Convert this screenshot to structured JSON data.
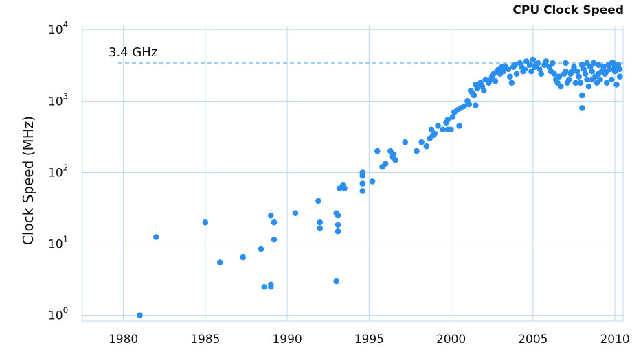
{
  "chart_data": {
    "type": "scatter",
    "title": "CPU Clock Speed",
    "ylabel": "Clock Speed (MHz)",
    "xlabel": "",
    "x_scale": "linear",
    "y_scale": "log",
    "xlim": [
      1977.5,
      2010.5
    ],
    "ylim_log10": [
      -0.08,
      4.05
    ],
    "x_ticks": [
      "1980",
      "1985",
      "1990",
      "1995",
      "2000",
      "2005",
      "2010"
    ],
    "y_ticks": [
      {
        "base": "10",
        "exp": "0"
      },
      {
        "base": "10",
        "exp": "1"
      },
      {
        "base": "10",
        "exp": "2"
      },
      {
        "base": "10",
        "exp": "3"
      },
      {
        "base": "10",
        "exp": "4"
      }
    ],
    "grid": true,
    "reference_line": {
      "label": "3.4 GHz",
      "value": 3400
    },
    "point_color": "#2b8ff0",
    "points": [
      [
        1981.0,
        1.0
      ],
      [
        1982.0,
        12.5
      ],
      [
        1985.0,
        20
      ],
      [
        1985.9,
        5.5
      ],
      [
        1987.3,
        6.5
      ],
      [
        1988.4,
        8.5
      ],
      [
        1988.6,
        2.5
      ],
      [
        1989.0,
        25
      ],
      [
        1989.0,
        2.5
      ],
      [
        1989.0,
        2.7
      ],
      [
        1989.2,
        20
      ],
      [
        1989.2,
        11.5
      ],
      [
        1990.5,
        27
      ],
      [
        1991.9,
        40
      ],
      [
        1992.0,
        20
      ],
      [
        1992.0,
        16.5
      ],
      [
        1993.0,
        27
      ],
      [
        1993.1,
        25
      ],
      [
        1993.1,
        18.5
      ],
      [
        1993.1,
        15
      ],
      [
        1993.0,
        3.0
      ],
      [
        1993.2,
        60
      ],
      [
        1993.4,
        66
      ],
      [
        1993.5,
        60
      ],
      [
        1994.6,
        100
      ],
      [
        1994.6,
        90
      ],
      [
        1994.6,
        70
      ],
      [
        1994.6,
        55
      ],
      [
        1995.2,
        75
      ],
      [
        1995.5,
        200
      ],
      [
        1995.8,
        120
      ],
      [
        1996.0,
        133
      ],
      [
        1996.3,
        200
      ],
      [
        1996.4,
        166
      ],
      [
        1996.5,
        180
      ],
      [
        1996.6,
        150
      ],
      [
        1997.2,
        266
      ],
      [
        1997.9,
        200
      ],
      [
        1998.2,
        266
      ],
      [
        1998.5,
        233
      ],
      [
        1998.7,
        300
      ],
      [
        1998.8,
        400
      ],
      [
        1998.9,
        333
      ],
      [
        1999.0,
        350
      ],
      [
        1999.2,
        450
      ],
      [
        1999.5,
        400
      ],
      [
        1999.7,
        500
      ],
      [
        1999.8,
        550
      ],
      [
        1999.8,
        400
      ],
      [
        2000.0,
        400
      ],
      [
        2000.1,
        600
      ],
      [
        2000.2,
        700
      ],
      [
        2000.4,
        750
      ],
      [
        2000.5,
        450
      ],
      [
        2000.6,
        800
      ],
      [
        2000.8,
        850
      ],
      [
        2001.0,
        1000
      ],
      [
        2001.1,
        900
      ],
      [
        2001.2,
        1400
      ],
      [
        2001.3,
        1300
      ],
      [
        2001.5,
        870
      ],
      [
        2001.5,
        1700
      ],
      [
        2001.6,
        1500
      ],
      [
        2001.8,
        1800
      ],
      [
        2001.9,
        1600
      ],
      [
        2002.0,
        1400
      ],
      [
        2002.1,
        2000
      ],
      [
        2002.3,
        1800
      ],
      [
        2002.5,
        2200
      ],
      [
        2002.6,
        2400
      ],
      [
        2002.7,
        1900
      ],
      [
        2002.8,
        2600
      ],
      [
        2002.9,
        2800
      ],
      [
        2003.0,
        2400
      ],
      [
        2003.1,
        3000
      ],
      [
        2003.3,
        3060
      ],
      [
        2003.5,
        2800
      ],
      [
        2003.6,
        2200
      ],
      [
        2003.7,
        1800
      ],
      [
        2003.9,
        3200
      ],
      [
        2004.0,
        2400
      ],
      [
        2004.2,
        3400
      ],
      [
        2004.3,
        3000
      ],
      [
        2004.5,
        2800
      ],
      [
        2004.6,
        3600
      ],
      [
        2004.8,
        3200
      ],
      [
        2004.9,
        2600
      ],
      [
        2005.0,
        3800
      ],
      [
        2005.1,
        3000
      ],
      [
        2005.3,
        3400
      ],
      [
        2005.4,
        2800
      ],
      [
        2005.5,
        2400
      ],
      [
        2005.7,
        3200
      ],
      [
        2005.8,
        3600
      ],
      [
        2006.0,
        3000
      ],
      [
        2006.1,
        2600
      ],
      [
        2006.3,
        2400
      ],
      [
        2006.4,
        2000
      ],
      [
        2006.5,
        1800
      ],
      [
        2006.6,
        2200
      ],
      [
        2006.7,
        1600
      ],
      [
        2006.9,
        2400
      ],
      [
        2007.0,
        2600
      ],
      [
        2007.1,
        1800
      ],
      [
        2007.2,
        2000
      ],
      [
        2007.3,
        2400
      ],
      [
        2007.5,
        3000
      ],
      [
        2007.6,
        1800
      ],
      [
        2007.7,
        2600
      ],
      [
        2007.8,
        2200
      ],
      [
        2007.9,
        1800
      ],
      [
        2008.0,
        3200
      ],
      [
        2008.0,
        1200
      ],
      [
        2008.0,
        800
      ],
      [
        2008.1,
        2800
      ],
      [
        2008.2,
        2400
      ],
      [
        2008.3,
        2000
      ],
      [
        2008.4,
        1600
      ],
      [
        2008.5,
        3000
      ],
      [
        2008.6,
        2600
      ],
      [
        2008.7,
        3400
      ],
      [
        2008.8,
        2200
      ],
      [
        2008.9,
        1800
      ],
      [
        2009.0,
        3200
      ],
      [
        2009.1,
        2000
      ],
      [
        2009.2,
        2600
      ],
      [
        2009.3,
        3000
      ],
      [
        2009.4,
        2400
      ],
      [
        2009.5,
        1800
      ],
      [
        2009.6,
        3200
      ],
      [
        2009.7,
        2800
      ],
      [
        2009.8,
        2000
      ],
      [
        2009.9,
        3400
      ],
      [
        2010.0,
        2600
      ],
      [
        2010.1,
        1700
      ],
      [
        2010.2,
        3200
      ],
      [
        2010.3,
        2200
      ],
      [
        2001.4,
        1200
      ],
      [
        2001.7,
        1600
      ],
      [
        2002.4,
        2000
      ],
      [
        2003.2,
        2600
      ],
      [
        2003.8,
        3000
      ],
      [
        2004.4,
        2600
      ],
      [
        2005.2,
        3200
      ],
      [
        2006.2,
        3400
      ],
      [
        2007.4,
        2600
      ],
      [
        2008.6,
        2000
      ],
      [
        2009.5,
        2600
      ],
      [
        2010.0,
        3000
      ],
      [
        2007.0,
        3400
      ],
      [
        2008.3,
        3400
      ],
      [
        2009.0,
        2400
      ],
      [
        2009.8,
        3400
      ],
      [
        2010.3,
        2800
      ]
    ]
  }
}
